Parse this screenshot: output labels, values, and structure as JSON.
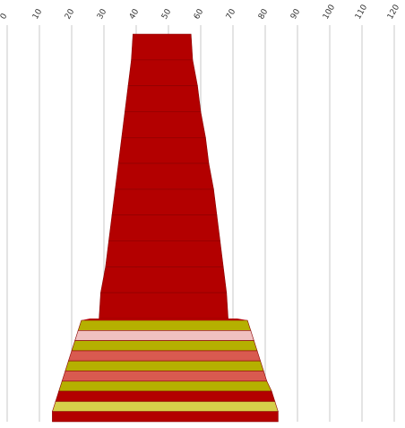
{
  "chart_data": {
    "type": "area",
    "orientation": "horizontal",
    "title": "",
    "xlabel": "",
    "ylabel": "",
    "x_axis": {
      "position": "top",
      "tick_rotation_deg": -60,
      "ticks": [
        "0",
        "10",
        "20",
        "30",
        "40",
        "50",
        "60",
        "70",
        "80",
        "90",
        "100",
        "110",
        "120"
      ],
      "range": [
        0,
        120
      ]
    },
    "grid": "vertical",
    "legend": "none",
    "band_colors": {
      "dark_red": "#b30000",
      "olive": "#b5b000",
      "pink": "#f0c0c0",
      "salmon": "#d95a50",
      "yellow": "#d6cf4a"
    },
    "bands": [
      {
        "color": "dark_red",
        "start": 39.0,
        "end": 57.0
      },
      {
        "color": "dark_red",
        "start": 38.5,
        "end": 57.5
      },
      {
        "color": "dark_red",
        "start": 37.5,
        "end": 59.0
      },
      {
        "color": "dark_red",
        "start": 36.5,
        "end": 60.0
      },
      {
        "color": "dark_red",
        "start": 35.5,
        "end": 61.5
      },
      {
        "color": "dark_red",
        "start": 34.5,
        "end": 62.5
      },
      {
        "color": "dark_red",
        "start": 33.5,
        "end": 64.0
      },
      {
        "color": "dark_red",
        "start": 32.5,
        "end": 65.0
      },
      {
        "color": "dark_red",
        "start": 31.5,
        "end": 66.0
      },
      {
        "color": "dark_red",
        "start": 30.5,
        "end": 67.0
      },
      {
        "color": "dark_red",
        "start": 29.0,
        "end": 68.0
      },
      {
        "color": "olive",
        "start": 23.0,
        "end": 74.5
      },
      {
        "color": "pink",
        "start": 22.0,
        "end": 75.5
      },
      {
        "color": "olive",
        "start": 21.0,
        "end": 76.5
      },
      {
        "color": "salmon",
        "start": 20.0,
        "end": 77.5
      },
      {
        "color": "olive",
        "start": 19.0,
        "end": 78.5
      },
      {
        "color": "salmon",
        "start": 18.0,
        "end": 79.5
      },
      {
        "color": "olive",
        "start": 17.0,
        "end": 80.5
      },
      {
        "color": "dark_red",
        "start": 16.0,
        "end": 82.0
      },
      {
        "color": "yellow",
        "start": 15.0,
        "end": 83.0
      },
      {
        "color": "dark_red",
        "start": 14.0,
        "end": 84.0
      }
    ]
  }
}
